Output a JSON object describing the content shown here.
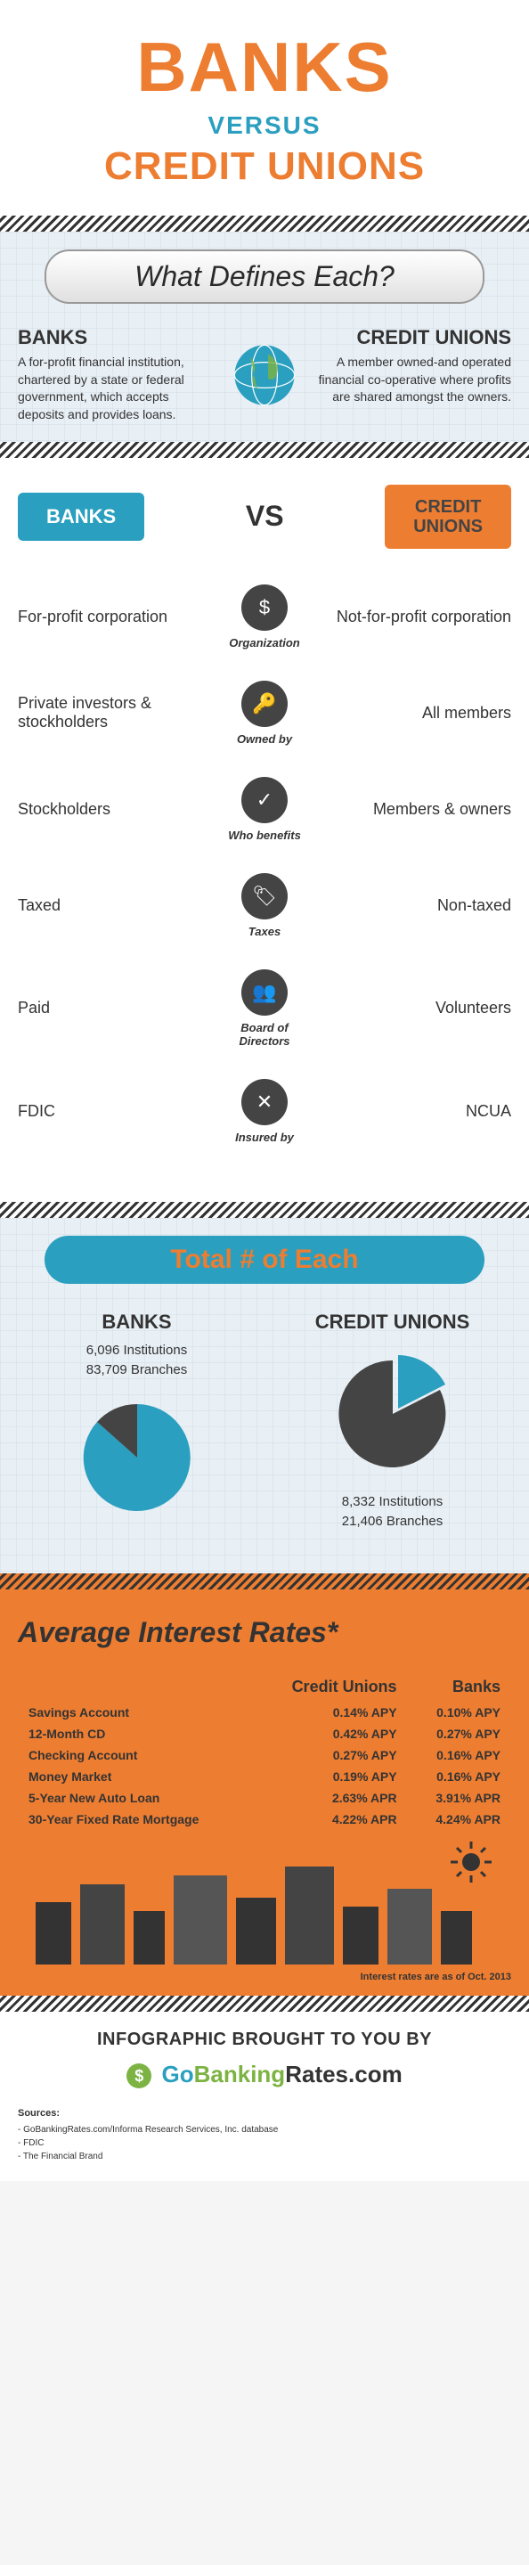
{
  "header": {
    "title": "BANKS",
    "versus": "VERSUS",
    "sub": "CREDIT UNIONS"
  },
  "defines": {
    "header": "What Defines Each?",
    "banks": {
      "title": "BANKS",
      "text": "A for-profit financial institution, chartered by a state or federal government, which accepts deposits and provides loans."
    },
    "cu": {
      "title": "CREDIT UNIONS",
      "text": "A member owned-and operated financial co-operative where profits are shared amongst the owners."
    }
  },
  "vs": {
    "banks_label": "BANKS",
    "cu_label": "CREDIT UNIONS",
    "mid": "VS",
    "rows": [
      {
        "left": "For-profit corporation",
        "icon": "$",
        "label": "Organization",
        "right": "Not-for-profit corporation"
      },
      {
        "left": "Private investors & stockholders",
        "icon": "🔑",
        "label": "Owned by",
        "right": "All members"
      },
      {
        "left": "Stockholders",
        "icon": "✓",
        "label": "Who benefits",
        "right": "Members & owners"
      },
      {
        "left": "Taxed",
        "icon": "🏷",
        "label": "Taxes",
        "right": "Non-taxed"
      },
      {
        "left": "Paid",
        "icon": "👥",
        "label": "Board of Directors",
        "right": "Volunteers"
      },
      {
        "left": "FDIC",
        "icon": "✕",
        "label": "Insured by",
        "right": "NCUA"
      }
    ]
  },
  "totals": {
    "header": "Total # of Each",
    "banks": {
      "title": "BANKS",
      "inst": "6,096 Institutions",
      "branch": "83,709 Branches",
      "pie_inst": 24,
      "pie_branch": 336,
      "c1": "#2a9fbf",
      "c2": "#444"
    },
    "cu": {
      "title": "CREDIT UNIONS",
      "inst": "8,332 Institutions",
      "branch": "21,406 Branches",
      "pie_inst": 100,
      "pie_branch": 260,
      "c1": "#2a9fbf",
      "c2": "#444"
    }
  },
  "rates": {
    "header": "Average Interest Rates*",
    "cols": [
      "",
      "Credit Unions",
      "Banks"
    ],
    "rows": [
      [
        "Savings Account",
        "0.14% APY",
        "0.10% APY"
      ],
      [
        "12-Month CD",
        "0.42% APY",
        "0.27% APY"
      ],
      [
        "Checking Account",
        "0.27% APY",
        "0.16% APY"
      ],
      [
        "Money Market",
        "0.19% APY",
        "0.16% APY"
      ],
      [
        "5-Year New Auto Loan",
        "2.63% APR",
        "3.91% APR"
      ],
      [
        "30-Year Fixed Rate Mortgage",
        "4.22% APR",
        "4.24% APR"
      ]
    ],
    "note": "Interest rates are as of Oct. 2013"
  },
  "footer": {
    "title": "INFOGRAPHIC BROUGHT TO YOU BY",
    "logo": {
      "go": "Go",
      "bank": "Banking",
      "rates": "Rates",
      "tld": ".com"
    },
    "sources_title": "Sources:",
    "sources": [
      "- GoBankingRates.com/Informa Research Services, Inc. database",
      "- FDIC",
      "- The Financial Brand"
    ]
  },
  "colors": {
    "orange": "#ed7d31",
    "teal": "#2a9fbf",
    "dark": "#444"
  }
}
